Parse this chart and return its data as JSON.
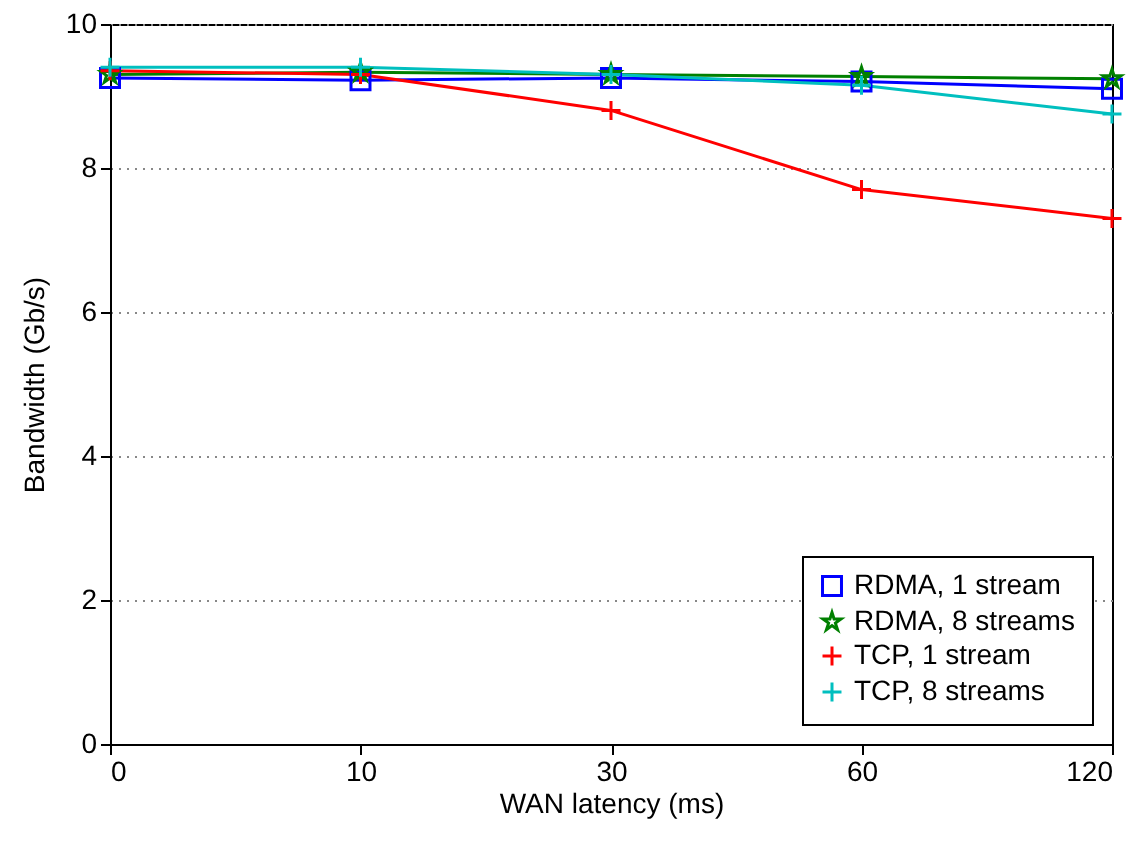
{
  "chart_data": {
    "type": "line",
    "xlabel": "WAN latency (ms)",
    "ylabel": "Bandwidth (Gb/s)",
    "categories": [
      "0",
      "10",
      "30",
      "60",
      "120"
    ],
    "ylim": [
      0,
      10
    ],
    "yticks": [
      0,
      2,
      4,
      6,
      8,
      10
    ],
    "grid": "y",
    "legend": "bottom right",
    "line_style": "solid",
    "series": [
      {
        "name": "RDMA, 1 stream",
        "color": "#0000ff",
        "marker": "square",
        "values": [
          9.25,
          9.22,
          9.25,
          9.2,
          9.1
        ]
      },
      {
        "name": "RDMA, 8 streams",
        "color": "#008000",
        "marker": "star",
        "values": [
          9.3,
          9.33,
          9.3,
          9.27,
          9.24
        ]
      },
      {
        "name": "TCP, 1 stream",
        "color": "#ff0000",
        "marker": "cross",
        "values": [
          9.35,
          9.3,
          8.8,
          7.7,
          7.3
        ]
      },
      {
        "name": "TCP, 8 streams",
        "color": "#00bfbf",
        "marker": "cross",
        "values": [
          9.4,
          9.4,
          9.3,
          9.15,
          8.75
        ]
      }
    ]
  }
}
